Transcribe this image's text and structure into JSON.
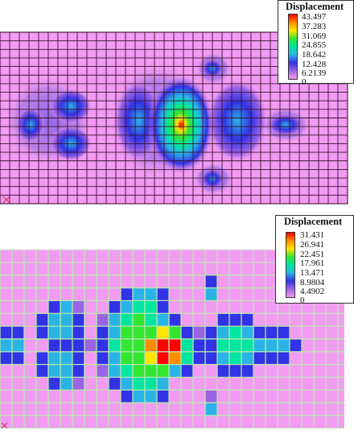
{
  "colors": {
    "background_field": "#f29bf2",
    "legend_gradient": [
      "#ff0000",
      "#ff8c00",
      "#ffe600",
      "#32e632",
      "#00e6a0",
      "#2ab4e6",
      "#3232e6",
      "#9b64e6",
      "#f29bf2"
    ]
  },
  "top_plot": {
    "legend": {
      "title": "Displacement",
      "labels": [
        "43.497",
        "37.283",
        "31.069",
        "24.855",
        "18.642",
        "12.428",
        "6.2139",
        "0"
      ]
    }
  },
  "bottom_plot": {
    "legend": {
      "title": "Displacement",
      "labels": [
        "31.431",
        "26.941",
        "22.451",
        "17.961",
        "13.471",
        "8.9804",
        "4.4902",
        "0"
      ]
    }
  }
}
